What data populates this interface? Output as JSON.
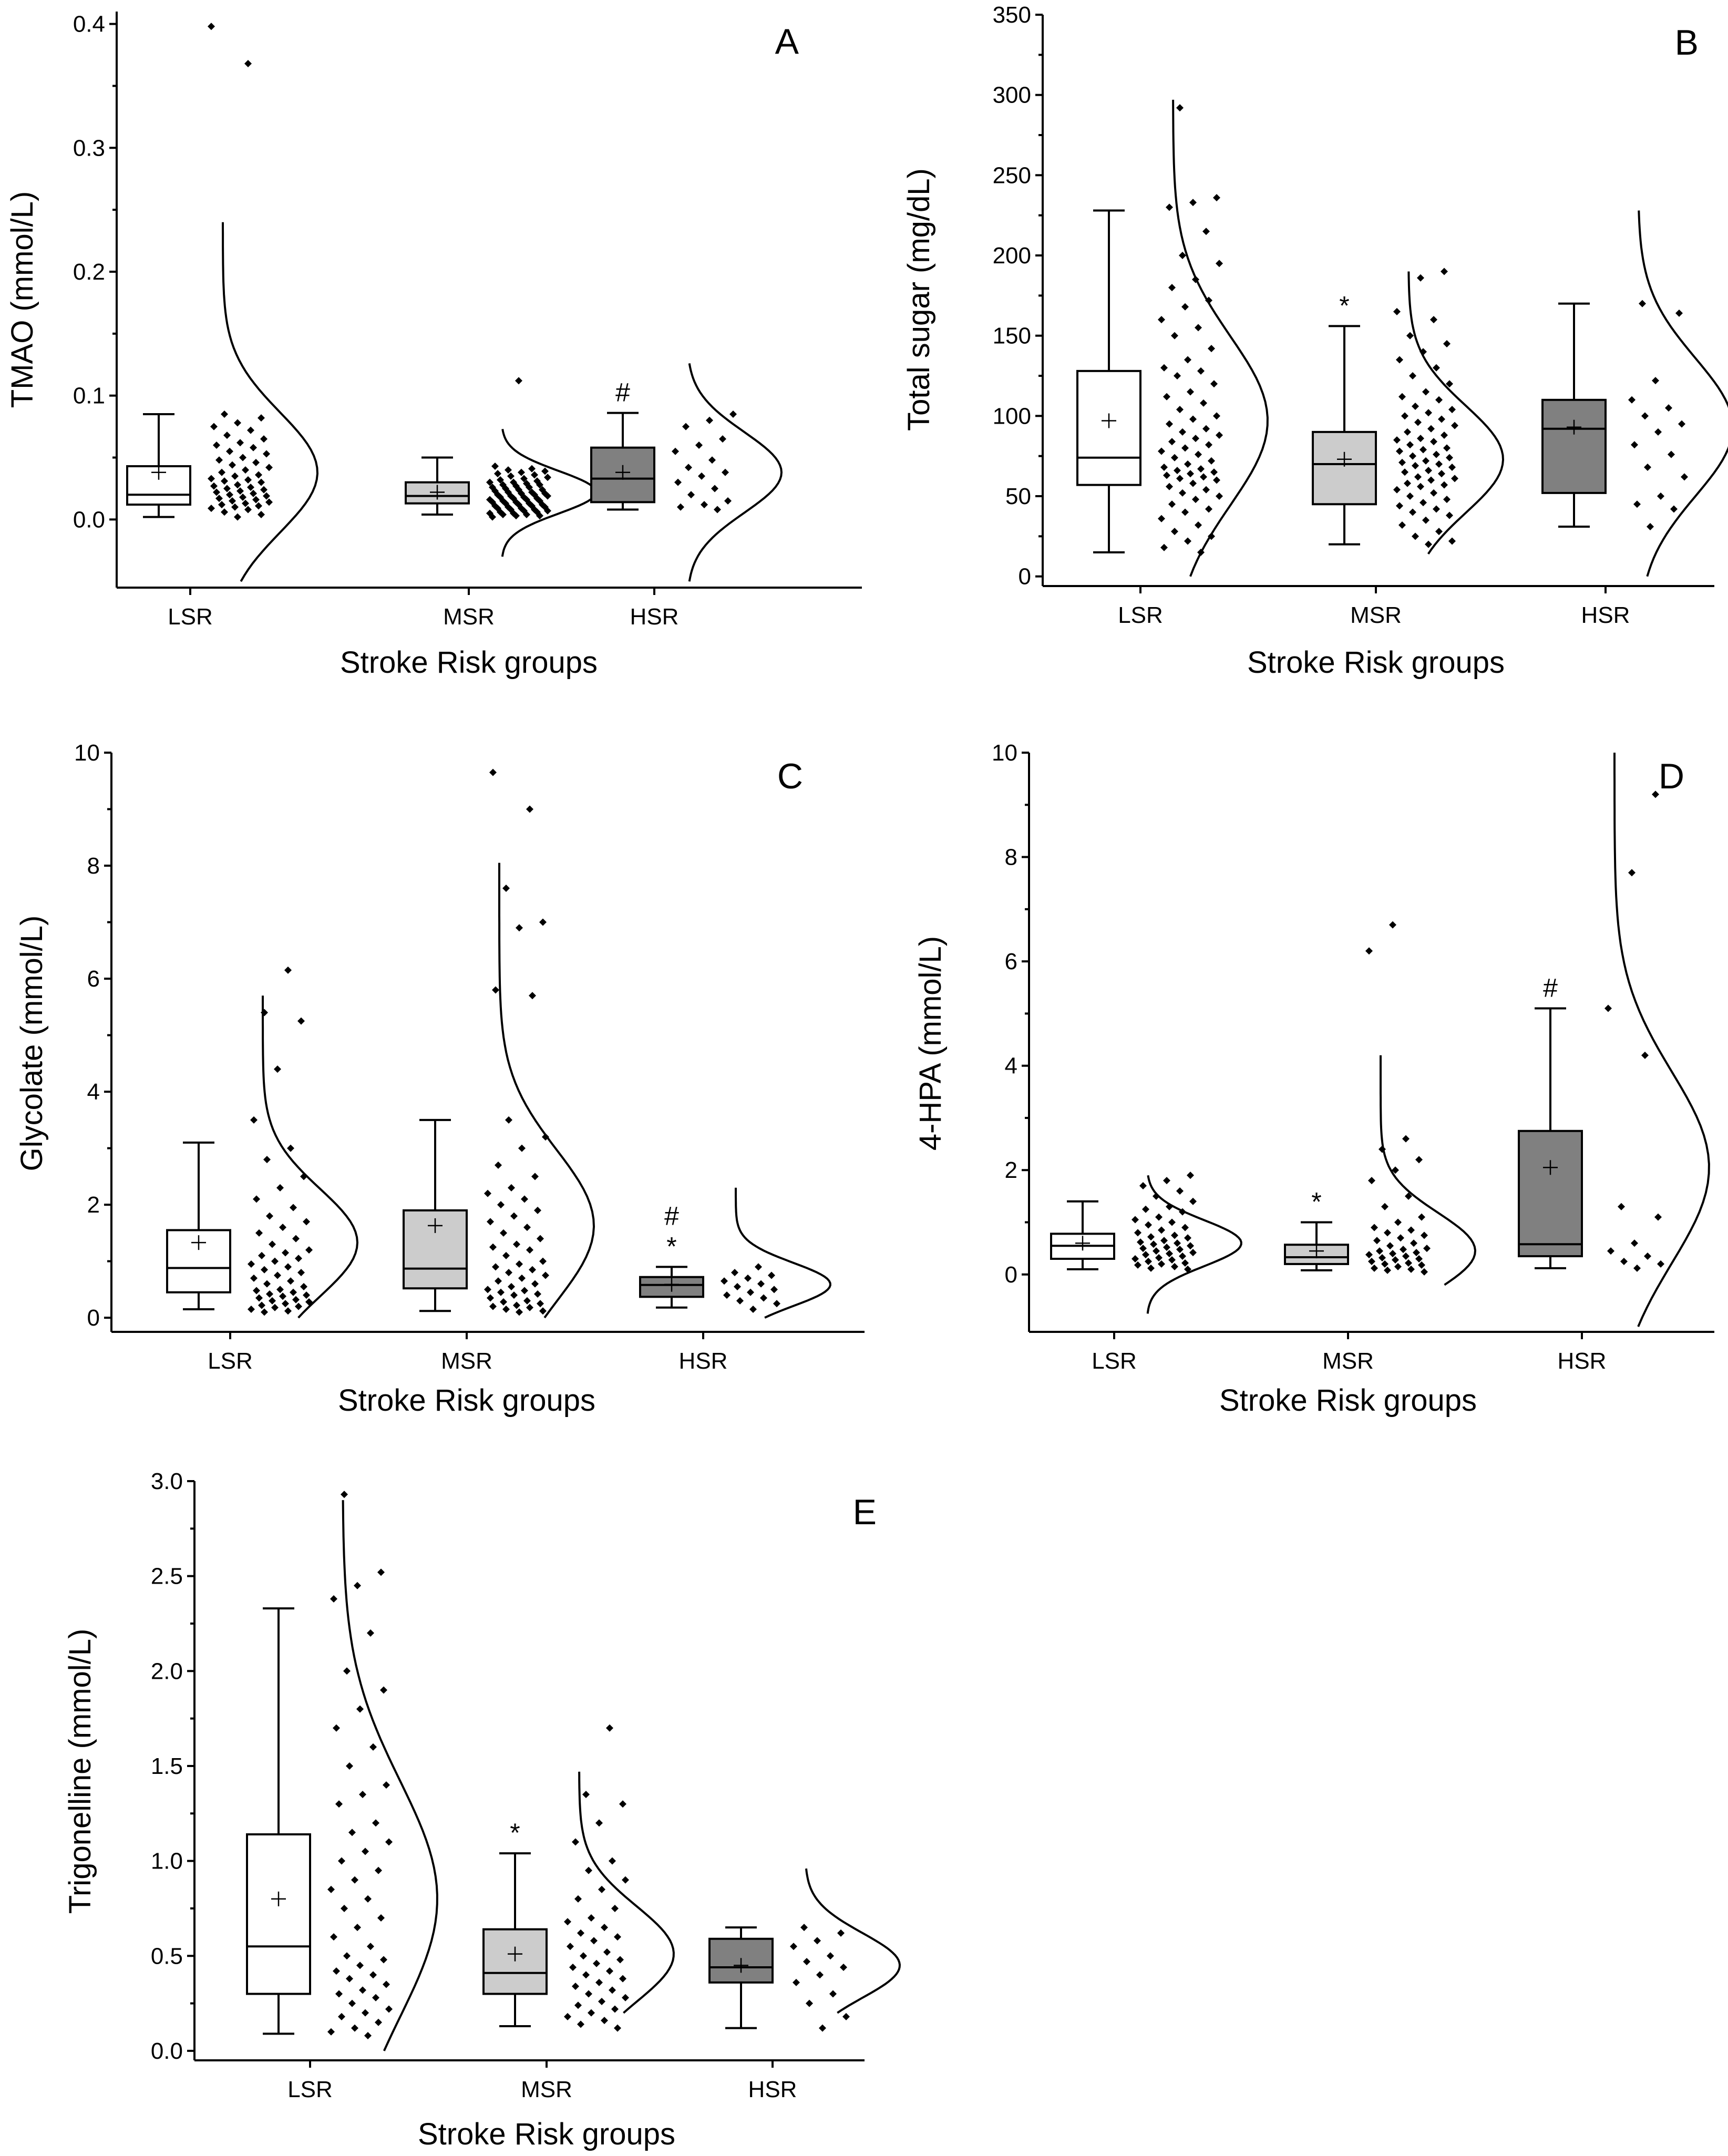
{
  "colors": {
    "LSR": "#ffffff",
    "MSR": "#cccccc",
    "HSR": "#808080",
    "line": "#000000"
  },
  "chart_data": [
    {
      "id": "A",
      "type": "box",
      "panel_label": "A",
      "ylabel": "TMAO (mmol/L)",
      "xlabel": "Stroke Risk groups",
      "ylim": [
        -0.055,
        0.41
      ],
      "yticks": [
        0.0,
        0.1,
        0.2,
        0.3,
        0.4
      ],
      "yticklabels": [
        "0.0",
        "0.1",
        "0.2",
        "0.3",
        "0.4"
      ],
      "categories": [
        "LSR",
        "MSR",
        "HSR"
      ],
      "groups": [
        {
          "name": "LSR",
          "whisker_low": 0.002,
          "q1": 0.012,
          "median": 0.02,
          "q3": 0.043,
          "whisker_high": 0.085,
          "mean": 0.038,
          "points": [
            0.398,
            0.368,
            0.085,
            0.082,
            0.078,
            0.075,
            0.072,
            0.068,
            0.065,
            0.062,
            0.06,
            0.058,
            0.055,
            0.053,
            0.05,
            0.048,
            0.046,
            0.044,
            0.042,
            0.04,
            0.038,
            0.036,
            0.035,
            0.033,
            0.032,
            0.031,
            0.03,
            0.028,
            0.027,
            0.026,
            0.025,
            0.024,
            0.023,
            0.022,
            0.021,
            0.02,
            0.019,
            0.018,
            0.017,
            0.016,
            0.015,
            0.014,
            0.013,
            0.012,
            0.011,
            0.01,
            0.009,
            0.008,
            0.006,
            0.004,
            0.002
          ],
          "density": {
            "min": -0.05,
            "max": 0.24
          },
          "annotation": ""
        },
        {
          "name": "MSR",
          "whisker_low": 0.004,
          "q1": 0.013,
          "median": 0.019,
          "q3": 0.03,
          "whisker_high": 0.05,
          "mean": 0.022,
          "points": [
            0.112,
            0.043,
            0.041,
            0.04,
            0.039,
            0.038,
            0.037,
            0.036,
            0.035,
            0.034,
            0.033,
            0.032,
            0.031,
            0.03,
            0.03,
            0.029,
            0.028,
            0.028,
            0.027,
            0.026,
            0.026,
            0.025,
            0.024,
            0.024,
            0.023,
            0.022,
            0.022,
            0.021,
            0.021,
            0.02,
            0.02,
            0.019,
            0.019,
            0.018,
            0.018,
            0.017,
            0.017,
            0.016,
            0.016,
            0.015,
            0.015,
            0.014,
            0.014,
            0.013,
            0.013,
            0.012,
            0.012,
            0.011,
            0.011,
            0.01,
            0.01,
            0.009,
            0.009,
            0.008,
            0.008,
            0.007,
            0.007,
            0.006,
            0.006,
            0.005,
            0.005,
            0.004,
            0.004,
            0.003,
            0.003,
            0.002
          ],
          "density": {
            "min": -0.03,
            "max": 0.073
          },
          "annotation": ""
        },
        {
          "name": "HSR",
          "whisker_low": 0.008,
          "q1": 0.014,
          "median": 0.033,
          "q3": 0.058,
          "whisker_high": 0.086,
          "mean": 0.038,
          "points": [
            0.085,
            0.08,
            0.075,
            0.065,
            0.06,
            0.055,
            0.048,
            0.042,
            0.038,
            0.035,
            0.03,
            0.025,
            0.02,
            0.015,
            0.012,
            0.01,
            0.008
          ],
          "density": {
            "min": -0.05,
            "max": 0.126
          },
          "annotation": "#"
        }
      ]
    },
    {
      "id": "B",
      "type": "box",
      "panel_label": "B",
      "ylabel": "Total sugar (mg/dL)",
      "xlabel": "Stroke Risk groups",
      "ylim": [
        -6,
        350
      ],
      "yticks": [
        0,
        50,
        100,
        150,
        200,
        250,
        300,
        350
      ],
      "yticklabels": [
        "0",
        "50",
        "100",
        "150",
        "200",
        "250",
        "300",
        "350"
      ],
      "categories": [
        "LSR",
        "MSR",
        "HSR"
      ],
      "groups": [
        {
          "name": "LSR",
          "whisker_low": 15,
          "q1": 57,
          "median": 74,
          "q3": 128,
          "whisker_high": 228,
          "mean": 97,
          "points": [
            292,
            236,
            233,
            230,
            215,
            200,
            195,
            185,
            180,
            172,
            168,
            160,
            155,
            150,
            142,
            135,
            130,
            128,
            125,
            120,
            115,
            112,
            108,
            104,
            100,
            98,
            95,
            92,
            90,
            88,
            86,
            84,
            82,
            80,
            78,
            76,
            74,
            72,
            70,
            68,
            67,
            66,
            65,
            64,
            63,
            62,
            61,
            60,
            58,
            56,
            54,
            52,
            50,
            48,
            45,
            42,
            40,
            36,
            32,
            28,
            25,
            22,
            18,
            15
          ],
          "density": {
            "min": 0,
            "max": 297
          },
          "annotation": ""
        },
        {
          "name": "MSR",
          "whisker_low": 20,
          "q1": 45,
          "median": 70,
          "q3": 90,
          "whisker_high": 156,
          "mean": 73,
          "points": [
            190,
            186,
            165,
            160,
            150,
            145,
            140,
            135,
            130,
            125,
            120,
            115,
            112,
            110,
            106,
            104,
            102,
            100,
            98,
            96,
            94,
            92,
            90,
            88,
            86,
            85,
            84,
            82,
            80,
            79,
            78,
            76,
            75,
            74,
            72,
            71,
            70,
            69,
            68,
            66,
            65,
            64,
            62,
            61,
            60,
            58,
            57,
            56,
            54,
            52,
            50,
            48,
            46,
            44,
            42,
            40,
            38,
            35,
            32,
            28,
            25,
            22,
            20
          ],
          "density": {
            "min": 14,
            "max": 190
          },
          "annotation": "*"
        },
        {
          "name": "HSR",
          "whisker_low": 31,
          "q1": 52,
          "median": 92,
          "q3": 110,
          "whisker_high": 170,
          "mean": 93,
          "points": [
            170,
            164,
            122,
            110,
            105,
            100,
            95,
            90,
            82,
            76,
            68,
            62,
            50,
            45,
            42,
            31
          ],
          "density": {
            "min": 0,
            "max": 228
          },
          "annotation": ""
        }
      ]
    },
    {
      "id": "C",
      "type": "box",
      "panel_label": "C",
      "ylabel": "Glycolate (mmol/L)",
      "xlabel": "Stroke Risk groups",
      "ylim": [
        -0.25,
        10
      ],
      "yticks": [
        0,
        2,
        4,
        6,
        8,
        10
      ],
      "yticklabels": [
        "0",
        "2",
        "4",
        "6",
        "8",
        "10"
      ],
      "categories": [
        "LSR",
        "MSR",
        "HSR"
      ],
      "groups": [
        {
          "name": "LSR",
          "whisker_low": 0.15,
          "q1": 0.45,
          "median": 0.88,
          "q3": 1.55,
          "whisker_high": 3.1,
          "mean": 1.33,
          "points": [
            6.15,
            5.4,
            5.25,
            4.4,
            3.5,
            3.0,
            2.8,
            2.5,
            2.3,
            2.1,
            1.95,
            1.8,
            1.7,
            1.6,
            1.5,
            1.4,
            1.3,
            1.2,
            1.15,
            1.1,
            1.05,
            1.0,
            0.95,
            0.9,
            0.85,
            0.8,
            0.75,
            0.7,
            0.65,
            0.6,
            0.55,
            0.5,
            0.48,
            0.45,
            0.42,
            0.4,
            0.38,
            0.35,
            0.32,
            0.3,
            0.28,
            0.25,
            0.22,
            0.2,
            0.18,
            0.15,
            0.12,
            0.1
          ],
          "density": {
            "min": 0,
            "max": 5.7
          },
          "annotation": ""
        },
        {
          "name": "MSR",
          "whisker_low": 0.12,
          "q1": 0.52,
          "median": 0.87,
          "q3": 1.9,
          "whisker_high": 3.5,
          "mean": 1.63,
          "points": [
            9.65,
            9.0,
            7.6,
            7.0,
            6.9,
            5.8,
            5.7,
            3.5,
            3.2,
            3.0,
            2.7,
            2.5,
            2.3,
            2.2,
            2.1,
            2.0,
            1.9,
            1.8,
            1.7,
            1.6,
            1.5,
            1.4,
            1.3,
            1.25,
            1.2,
            1.1,
            1.0,
            0.95,
            0.9,
            0.85,
            0.8,
            0.75,
            0.7,
            0.65,
            0.6,
            0.55,
            0.5,
            0.48,
            0.45,
            0.42,
            0.4,
            0.35,
            0.3,
            0.28,
            0.25,
            0.22,
            0.2,
            0.18,
            0.15,
            0.12,
            0.1
          ],
          "density": {
            "min": 0,
            "max": 8.05
          },
          "annotation": ""
        },
        {
          "name": "HSR",
          "whisker_low": 0.18,
          "q1": 0.37,
          "median": 0.58,
          "q3": 0.72,
          "whisker_high": 0.9,
          "mean": 0.59,
          "points": [
            0.9,
            0.8,
            0.75,
            0.7,
            0.65,
            0.6,
            0.55,
            0.5,
            0.45,
            0.4,
            0.35,
            0.3,
            0.25,
            0.15
          ],
          "density": {
            "min": 0,
            "max": 2.3
          },
          "annotation": "#\n*"
        }
      ]
    },
    {
      "id": "D",
      "type": "box",
      "panel_label": "D",
      "ylabel": "4-HPA (mmol/L)",
      "xlabel": "Stroke Risk groups",
      "ylim": [
        -1.1,
        10
      ],
      "yticks": [
        0,
        2,
        4,
        6,
        8,
        10
      ],
      "yticklabels": [
        "0",
        "2",
        "4",
        "6",
        "8",
        "10"
      ],
      "categories": [
        "LSR",
        "MSR",
        "HSR"
      ],
      "groups": [
        {
          "name": "LSR",
          "whisker_low": 0.1,
          "q1": 0.3,
          "median": 0.55,
          "q3": 0.78,
          "whisker_high": 1.4,
          "mean": 0.6,
          "points": [
            1.9,
            1.8,
            1.7,
            1.6,
            1.5,
            1.4,
            1.3,
            1.25,
            1.2,
            1.1,
            1.05,
            1.0,
            0.95,
            0.9,
            0.85,
            0.8,
            0.75,
            0.72,
            0.7,
            0.65,
            0.62,
            0.6,
            0.58,
            0.55,
            0.52,
            0.5,
            0.48,
            0.45,
            0.42,
            0.4,
            0.38,
            0.35,
            0.32,
            0.3,
            0.28,
            0.25,
            0.22,
            0.2,
            0.18,
            0.15,
            0.12,
            0.1
          ],
          "density": {
            "min": -0.75,
            "max": 1.9
          },
          "annotation": ""
        },
        {
          "name": "MSR",
          "whisker_low": 0.08,
          "q1": 0.2,
          "median": 0.33,
          "q3": 0.57,
          "whisker_high": 1.0,
          "mean": 0.45,
          "points": [
            6.7,
            6.2,
            2.6,
            2.4,
            2.2,
            2.0,
            1.8,
            1.5,
            1.3,
            1.1,
            1.0,
            0.9,
            0.85,
            0.8,
            0.75,
            0.7,
            0.65,
            0.6,
            0.55,
            0.5,
            0.48,
            0.45,
            0.42,
            0.4,
            0.38,
            0.35,
            0.32,
            0.3,
            0.28,
            0.25,
            0.22,
            0.2,
            0.18,
            0.15,
            0.12,
            0.1,
            0.08,
            0.05
          ],
          "density": {
            "min": -0.2,
            "max": 4.2
          },
          "annotation": "*"
        },
        {
          "name": "HSR",
          "whisker_low": 0.12,
          "q1": 0.35,
          "median": 0.58,
          "q3": 2.75,
          "whisker_high": 5.1,
          "mean": 2.05,
          "points": [
            9.2,
            7.7,
            5.1,
            4.2,
            1.3,
            1.1,
            0.6,
            0.45,
            0.35,
            0.25,
            0.2,
            0.12
          ],
          "density": {
            "min": -1.0,
            "max": 10
          },
          "annotation": "#"
        }
      ]
    },
    {
      "id": "E",
      "type": "box",
      "panel_label": "E",
      "ylabel": "Trigonelline (mmol/L)",
      "xlabel": "Stroke Risk groups",
      "ylim": [
        -0.05,
        3.0
      ],
      "yticks": [
        0.0,
        0.5,
        1.0,
        1.5,
        2.0,
        2.5,
        3.0
      ],
      "yticklabels": [
        "0.0",
        "0.5",
        "1.0",
        "1.5",
        "2.0",
        "2.5",
        "3.0"
      ],
      "categories": [
        "LSR",
        "MSR",
        "HSR"
      ],
      "groups": [
        {
          "name": "LSR",
          "whisker_low": 0.09,
          "q1": 0.3,
          "median": 0.55,
          "q3": 1.14,
          "whisker_high": 2.33,
          "mean": 0.8,
          "points": [
            2.93,
            2.52,
            2.45,
            2.38,
            2.2,
            2.0,
            1.9,
            1.8,
            1.7,
            1.6,
            1.5,
            1.4,
            1.35,
            1.3,
            1.2,
            1.15,
            1.1,
            1.05,
            1.0,
            0.95,
            0.9,
            0.85,
            0.8,
            0.75,
            0.7,
            0.65,
            0.6,
            0.55,
            0.5,
            0.48,
            0.45,
            0.42,
            0.4,
            0.38,
            0.35,
            0.32,
            0.3,
            0.28,
            0.25,
            0.22,
            0.2,
            0.18,
            0.15,
            0.12,
            0.1,
            0.08
          ],
          "density": {
            "min": 0,
            "max": 2.9
          },
          "annotation": ""
        },
        {
          "name": "MSR",
          "whisker_low": 0.13,
          "q1": 0.3,
          "median": 0.41,
          "q3": 0.64,
          "whisker_high": 1.04,
          "mean": 0.51,
          "points": [
            1.7,
            1.35,
            1.3,
            1.2,
            1.1,
            1.0,
            0.95,
            0.9,
            0.85,
            0.8,
            0.75,
            0.7,
            0.68,
            0.65,
            0.62,
            0.6,
            0.58,
            0.55,
            0.52,
            0.5,
            0.48,
            0.46,
            0.44,
            0.42,
            0.4,
            0.38,
            0.36,
            0.34,
            0.32,
            0.3,
            0.28,
            0.26,
            0.24,
            0.22,
            0.2,
            0.18,
            0.16,
            0.14,
            0.12
          ],
          "density": {
            "min": 0.2,
            "max": 1.47
          },
          "annotation": "*"
        },
        {
          "name": "HSR",
          "whisker_low": 0.12,
          "q1": 0.36,
          "median": 0.44,
          "q3": 0.59,
          "whisker_high": 0.65,
          "mean": 0.45,
          "points": [
            0.65,
            0.62,
            0.58,
            0.55,
            0.5,
            0.47,
            0.44,
            0.4,
            0.36,
            0.3,
            0.25,
            0.18,
            0.12
          ],
          "density": {
            "min": 0.2,
            "max": 0.96
          },
          "annotation": ""
        }
      ]
    }
  ]
}
